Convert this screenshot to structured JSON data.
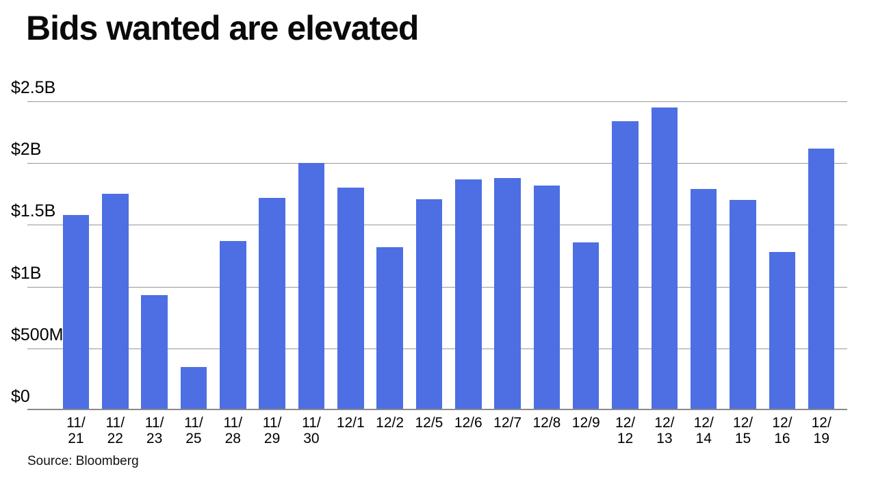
{
  "title": "Bids wanted are elevated",
  "source": "Source: Bloomberg",
  "colors": {
    "bar": "#4d6fe3",
    "gridline": "#979797",
    "axis": "#8a8a8a",
    "text": "#000000",
    "background": "#ffffff"
  },
  "chart_data": {
    "type": "bar",
    "title": "Bids wanted are elevated",
    "xlabel": "",
    "ylabel": "",
    "unit": "USD",
    "values_unit": "billions of dollars",
    "categories": [
      "11/21",
      "11/22",
      "11/23",
      "11/25",
      "11/28",
      "11/29",
      "11/30",
      "12/1",
      "12/2",
      "12/5",
      "12/6",
      "12/7",
      "12/8",
      "12/9",
      "12/12",
      "12/13",
      "12/14",
      "12/15",
      "12/16",
      "12/19"
    ],
    "categories_display": [
      [
        "11/",
        "21"
      ],
      [
        "11/",
        "22"
      ],
      [
        "11/",
        "23"
      ],
      [
        "11/",
        "25"
      ],
      [
        "11/",
        "28"
      ],
      [
        "11/",
        "29"
      ],
      [
        "11/",
        "30"
      ],
      [
        "12/1"
      ],
      [
        "12/2"
      ],
      [
        "12/5"
      ],
      [
        "12/6"
      ],
      [
        "12/7"
      ],
      [
        "12/8"
      ],
      [
        "12/9"
      ],
      [
        "12/",
        "12"
      ],
      [
        "12/",
        "13"
      ],
      [
        "12/",
        "14"
      ],
      [
        "12/",
        "15"
      ],
      [
        "12/",
        "16"
      ],
      [
        "12/",
        "19"
      ]
    ],
    "values": [
      1.58,
      1.75,
      0.93,
      0.35,
      1.37,
      1.72,
      2.0,
      1.8,
      1.32,
      1.71,
      1.87,
      1.88,
      1.82,
      1.36,
      2.34,
      2.45,
      1.79,
      1.7,
      1.28,
      2.12
    ],
    "y_ticks": [
      {
        "label": "$2.5B",
        "value": 2.5
      },
      {
        "label": "$2B",
        "value": 2.0
      },
      {
        "label": "$1.5B",
        "value": 1.5
      },
      {
        "label": "$1B",
        "value": 1.0
      },
      {
        "label": "$500M",
        "value": 0.5
      },
      {
        "label": "$0",
        "value": 0.0
      }
    ],
    "ylim": [
      0,
      2.5
    ],
    "grid": true,
    "legend": "none",
    "source": "Source: Bloomberg"
  }
}
